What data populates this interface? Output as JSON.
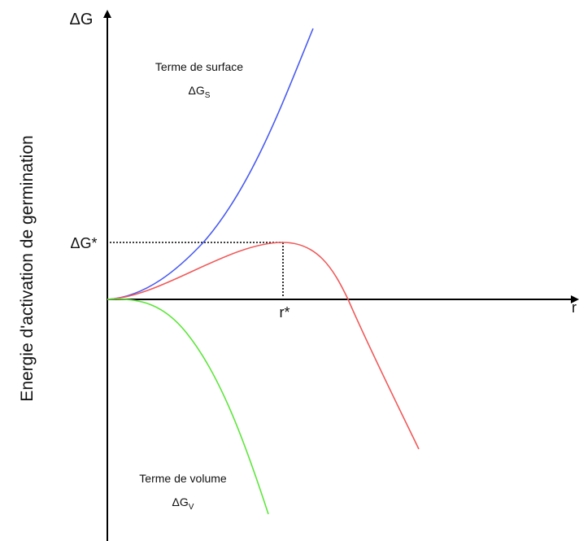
{
  "axes": {
    "y_label": "ΔG",
    "y_title": "Energie d'activation de germination",
    "x_label": "r"
  },
  "curves": {
    "surface": {
      "label": "Terme de surface",
      "symbol": "ΔG",
      "sub": "S"
    },
    "volume": {
      "label": "Terme de volume",
      "symbol": "ΔG",
      "sub": "V"
    }
  },
  "critical": {
    "energy": "ΔG*",
    "radius": "r*"
  }
}
